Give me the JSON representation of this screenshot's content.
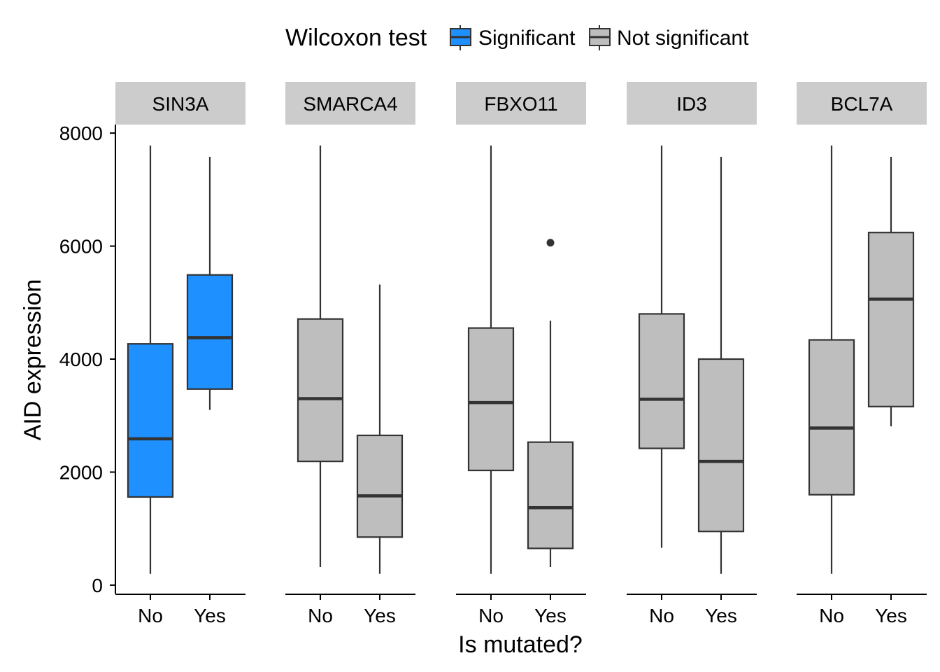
{
  "chart_data": {
    "type": "boxplot",
    "legend": {
      "title": "Wilcoxon test",
      "position": "top",
      "items": [
        {
          "label": "Significant",
          "color": "#1e90ff"
        },
        {
          "label": "Not significant",
          "color": "#bebebe"
        }
      ]
    },
    "xlabel": "Is mutated?",
    "ylabel": "AID expression",
    "ylim": [
      -150,
      8150
    ],
    "yticks": [
      "0",
      "2000",
      "4000",
      "6000",
      "8000"
    ],
    "ytick_values": [
      0,
      2000,
      4000,
      6000,
      8000
    ],
    "categories": [
      "No",
      "Yes"
    ],
    "grid": false,
    "panels": [
      {
        "name": "SIN3A",
        "significant": true,
        "boxes": [
          {
            "group": "No",
            "min": 200,
            "q1": 1560,
            "median": 2590,
            "q3": 4270,
            "max": 7780,
            "outliers": []
          },
          {
            "group": "Yes",
            "min": 3100,
            "q1": 3470,
            "median": 4380,
            "q3": 5490,
            "max": 7580,
            "outliers": []
          }
        ]
      },
      {
        "name": "SMARCA4",
        "significant": false,
        "boxes": [
          {
            "group": "No",
            "min": 320,
            "q1": 2190,
            "median": 3300,
            "q3": 4710,
            "max": 7780,
            "outliers": []
          },
          {
            "group": "Yes",
            "min": 200,
            "q1": 850,
            "median": 1580,
            "q3": 2650,
            "max": 5320,
            "outliers": []
          }
        ]
      },
      {
        "name": "FBXO11",
        "significant": false,
        "boxes": [
          {
            "group": "No",
            "min": 200,
            "q1": 2030,
            "median": 3230,
            "q3": 4550,
            "max": 7780,
            "outliers": []
          },
          {
            "group": "Yes",
            "min": 320,
            "q1": 650,
            "median": 1370,
            "q3": 2530,
            "max": 4680,
            "outliers": [
              6060
            ]
          }
        ]
      },
      {
        "name": "ID3",
        "significant": false,
        "boxes": [
          {
            "group": "No",
            "min": 660,
            "q1": 2420,
            "median": 3290,
            "q3": 4800,
            "max": 7780,
            "outliers": []
          },
          {
            "group": "Yes",
            "min": 200,
            "q1": 950,
            "median": 2190,
            "q3": 4000,
            "max": 7580,
            "outliers": []
          }
        ]
      },
      {
        "name": "BCL7A",
        "significant": false,
        "boxes": [
          {
            "group": "No",
            "min": 200,
            "q1": 1600,
            "median": 2780,
            "q3": 4340,
            "max": 7780,
            "outliers": []
          },
          {
            "group": "Yes",
            "min": 2810,
            "q1": 3160,
            "median": 5060,
            "q3": 6240,
            "max": 7580,
            "outliers": []
          }
        ]
      }
    ]
  }
}
